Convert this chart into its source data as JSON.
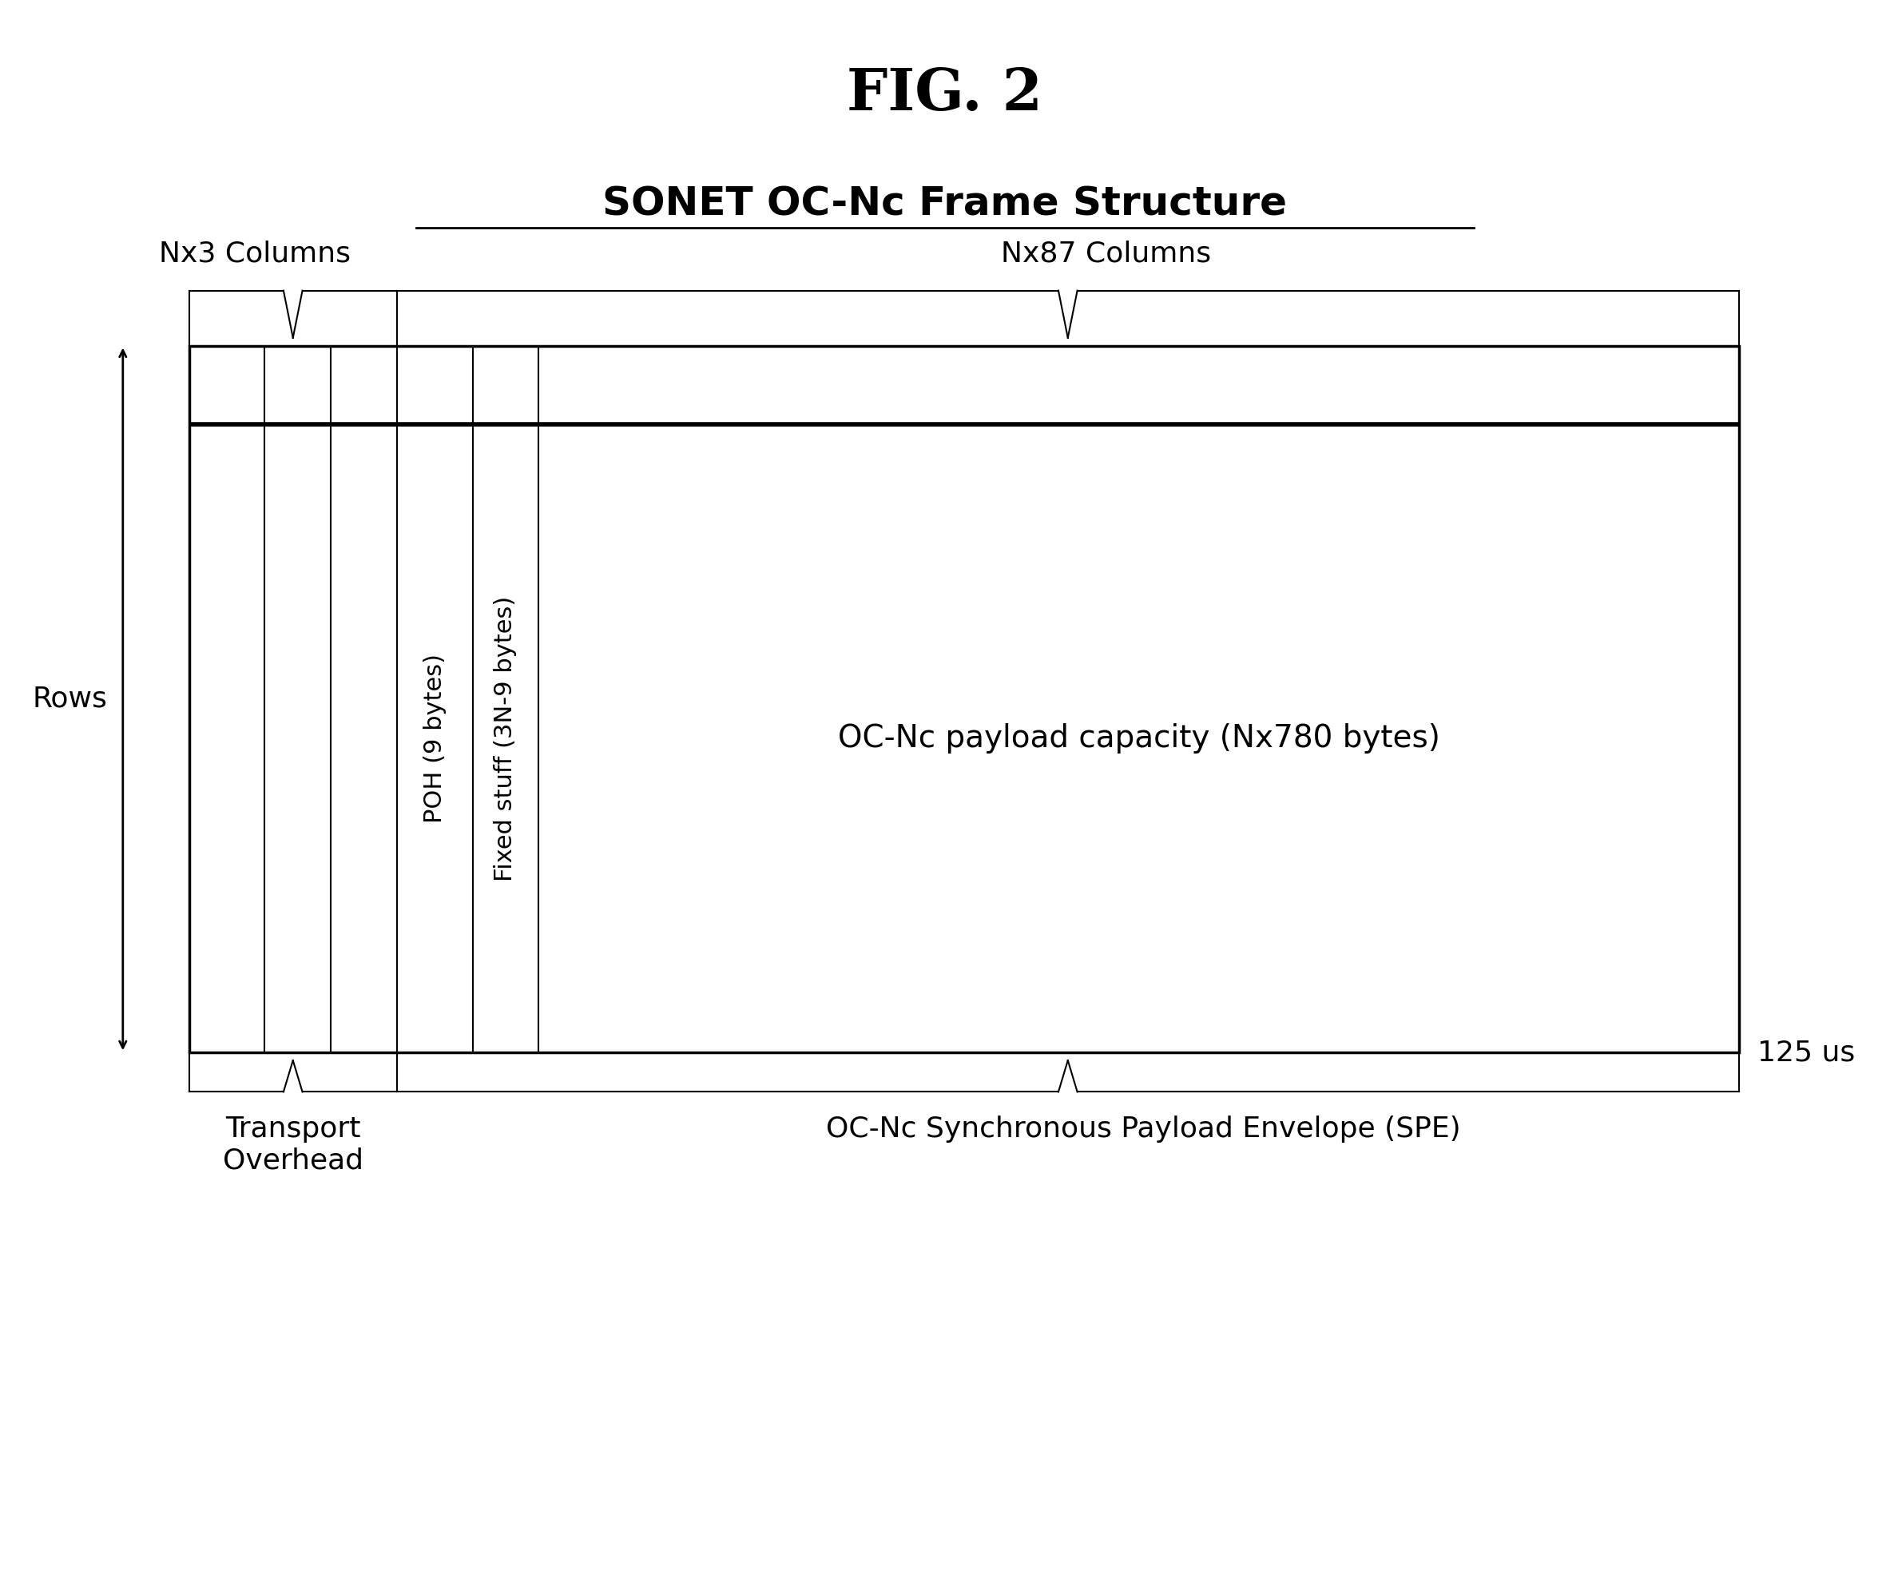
{
  "title": "FIG. 2",
  "subtitle": "SONET OC-Nc Frame Structure",
  "bg_color": "#ffffff",
  "frame_color": "#000000",
  "title_fontsize": 52,
  "subtitle_fontsize": 36,
  "label_fontsize": 26,
  "small_label_fontsize": 22,
  "fig_width": 23.66,
  "fig_height": 19.66,
  "col_labels_above": [
    "Nx3 Columns",
    "Nx87 Columns"
  ],
  "col_labels_below_left": "Transport\nOverhead",
  "col_labels_below_right": "OC-Nc Synchronous Payload Envelope (SPE)",
  "side_label": "Rows",
  "right_label": "125 us",
  "payload_label": "OC-Nc payload capacity (Nx780 bytes)",
  "poh_label": "POH (9 bytes)",
  "fixed_stuff_label": "Fixed stuff (3N-9 bytes)"
}
